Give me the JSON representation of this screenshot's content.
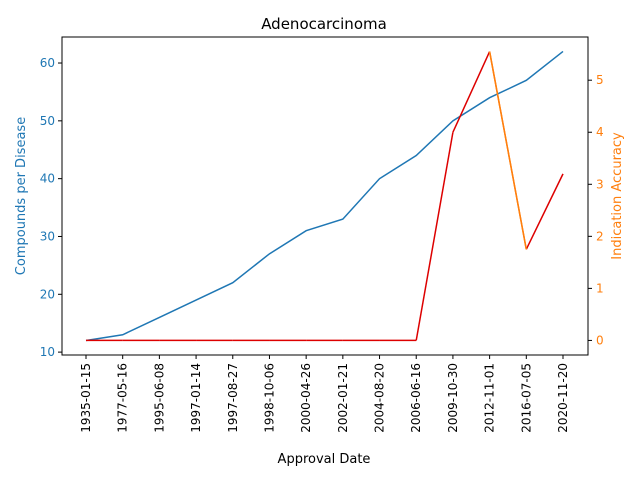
{
  "chart_data": {
    "type": "line",
    "title": "Adenocarcinoma",
    "xlabel": "Approval Date",
    "ylabel_left": "Compounds per Disease",
    "ylabel_right": "Indication Accuracy",
    "categories": [
      "1935-01-15",
      "1977-05-16",
      "1995-06-08",
      "1997-01-14",
      "1997-08-27",
      "1998-10-06",
      "2000-04-26",
      "2002-01-21",
      "2004-08-20",
      "2006-06-16",
      "2009-10-30",
      "2012-11-01",
      "2016-07-05",
      "2020-11-20"
    ],
    "series": [
      {
        "axis": "left",
        "color": "#1f77b4",
        "values": [
          12,
          13,
          16,
          19,
          22,
          27,
          31,
          33,
          40,
          44,
          50,
          54,
          57,
          62
        ]
      },
      {
        "axis": "right",
        "color": "#ff7f0e",
        "highlight_color": "#dd0000",
        "values": [
          0,
          0,
          0,
          0,
          0,
          0,
          0,
          0,
          0,
          0,
          4.0,
          5.55,
          1.75,
          3.2
        ]
      }
    ],
    "ylim_left": [
      9.5,
      64.5
    ],
    "ylim_right": [
      -0.28,
      5.83
    ],
    "yticks_left": [
      "10",
      "20",
      "30",
      "40",
      "50",
      "60"
    ],
    "yticks_right": [
      "0",
      "1",
      "2",
      "3",
      "4",
      "5"
    ],
    "left_axis_color": "#1f77b4",
    "right_axis_color": "#ff7f0e",
    "grid": false
  }
}
